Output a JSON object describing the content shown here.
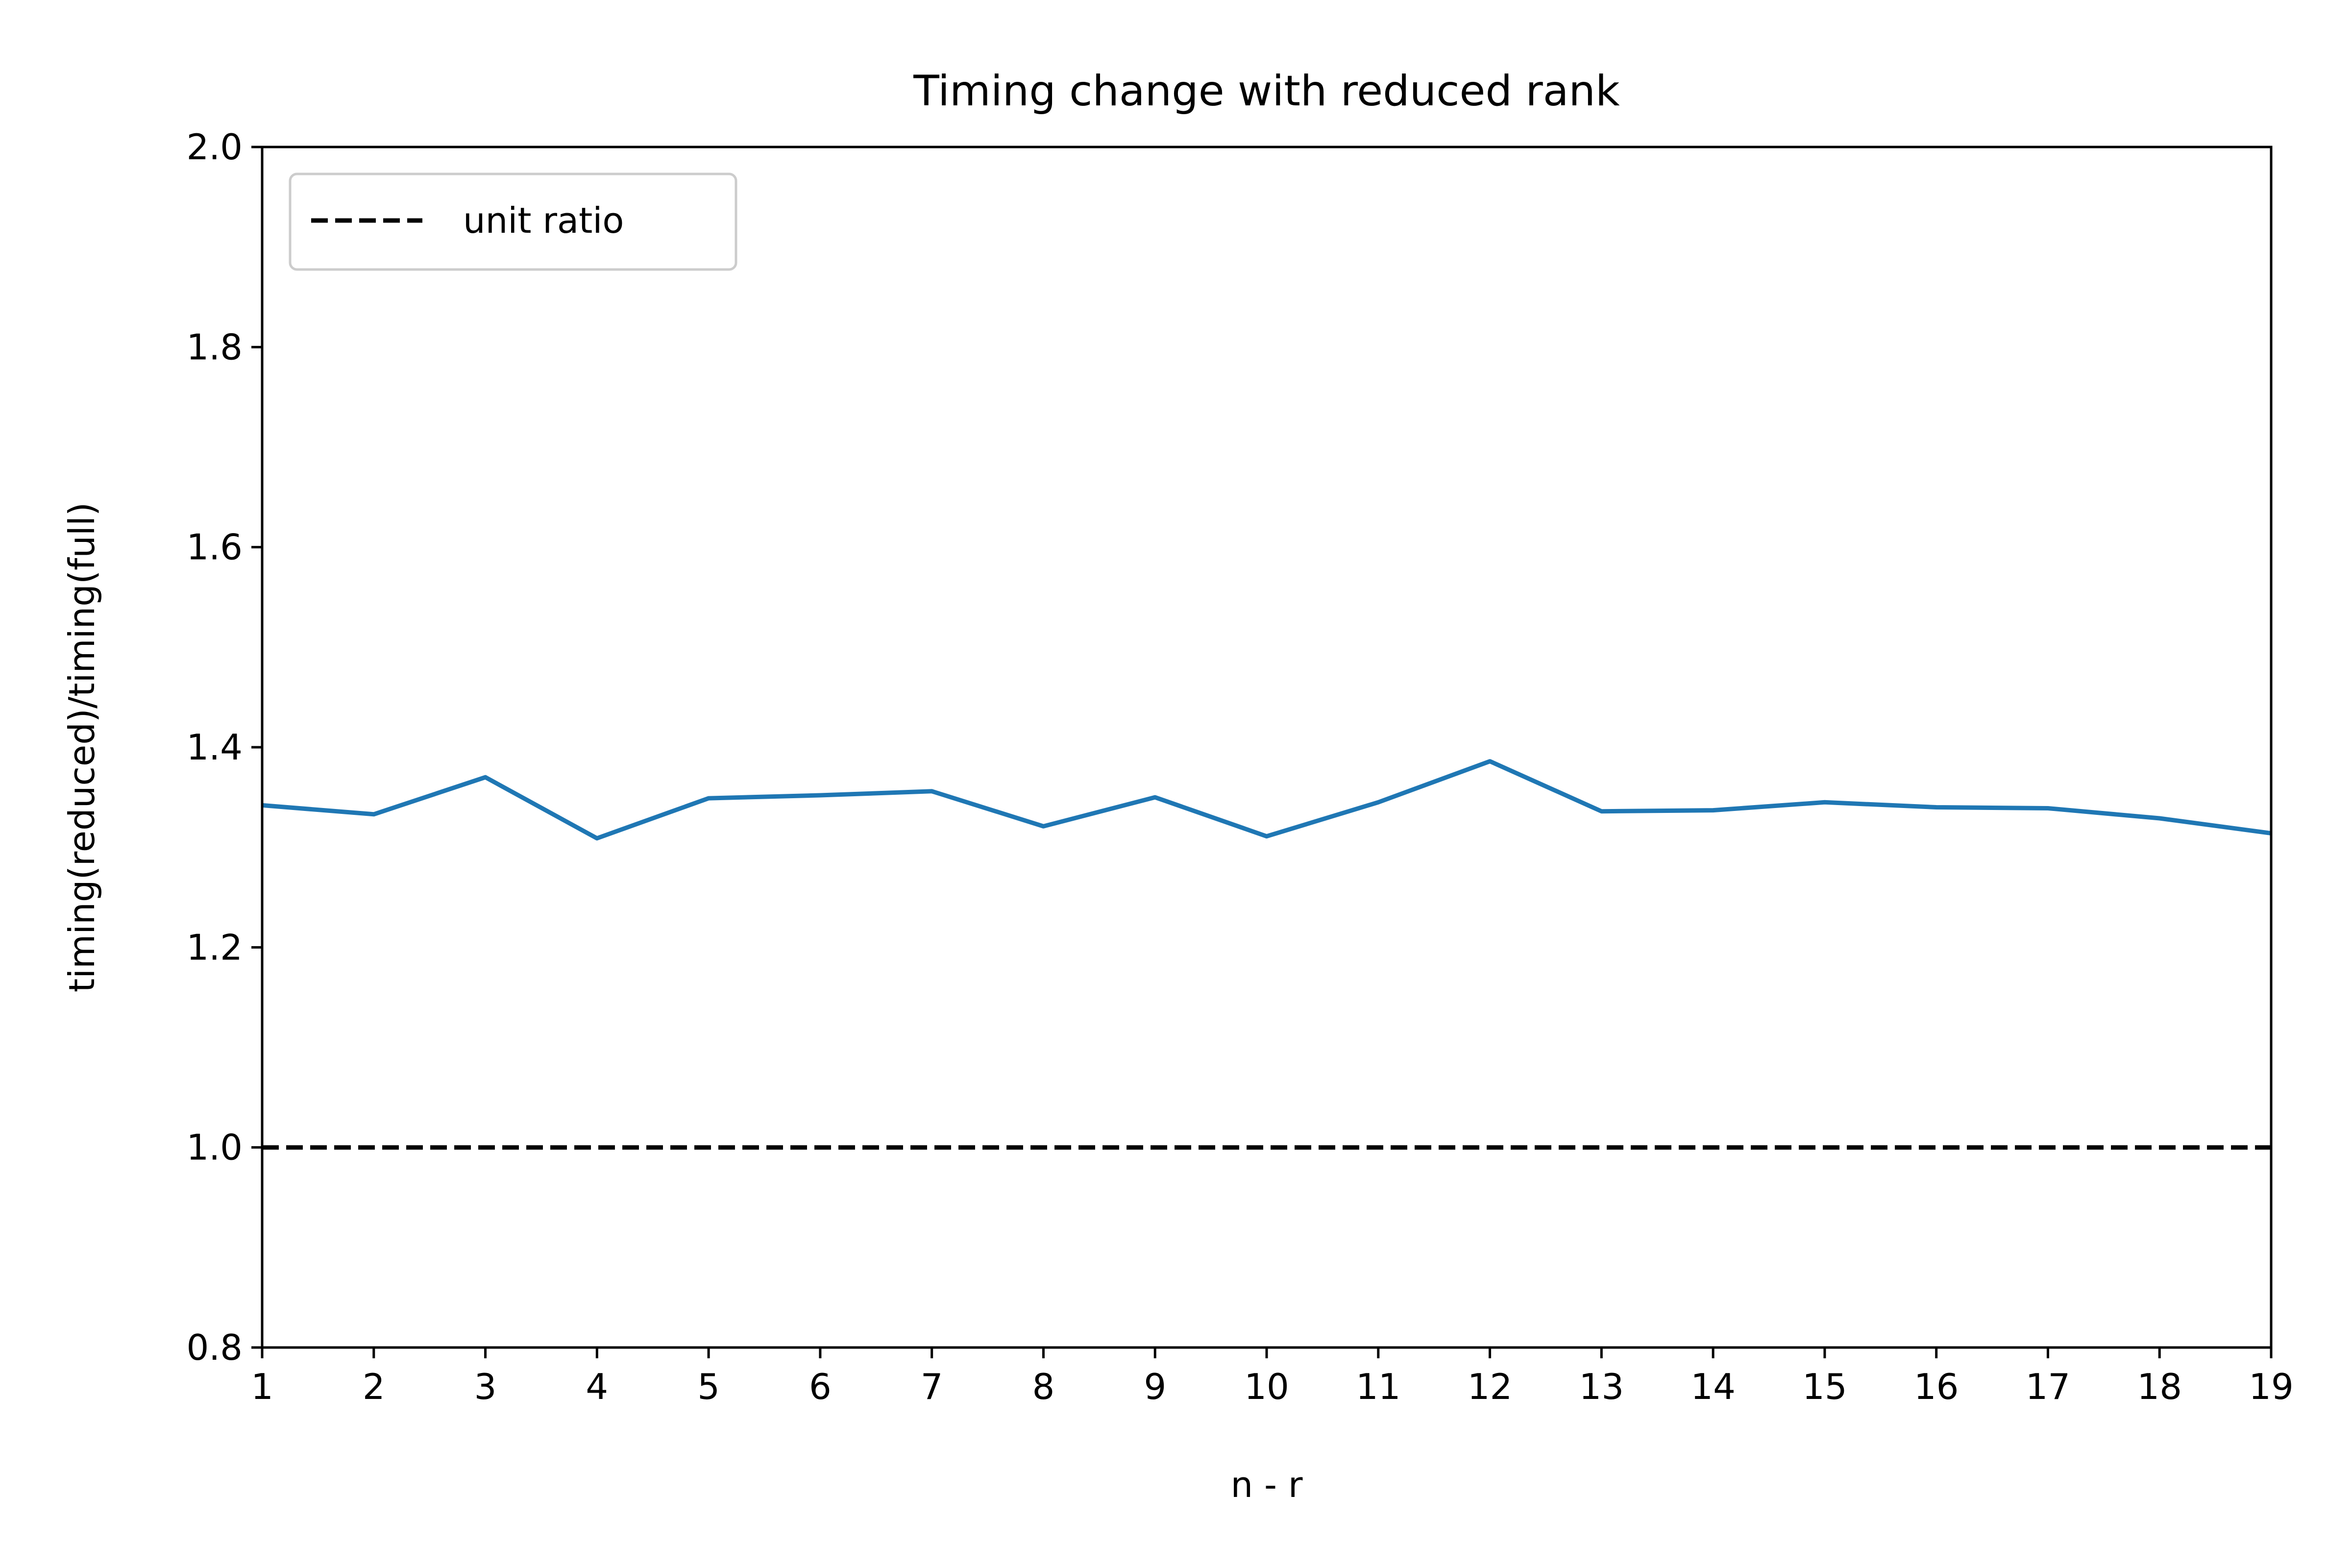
{
  "chart_data": {
    "type": "line",
    "title": "Timing change with reduced rank",
    "xlabel": "n - r",
    "ylabel": "timing(reduced)/timing(full)",
    "xlim": [
      1,
      19
    ],
    "ylim": [
      0.8,
      2.0
    ],
    "x_ticks": [
      "1",
      "2",
      "3",
      "4",
      "5",
      "6",
      "7",
      "8",
      "9",
      "10",
      "11",
      "12",
      "13",
      "14",
      "15",
      "16",
      "17",
      "18",
      "19"
    ],
    "y_ticks": [
      "0.8",
      "1.0",
      "1.2",
      "1.4",
      "1.6",
      "1.8",
      "2.0"
    ],
    "grid": false,
    "legend_position": "top-left",
    "series": [
      {
        "color": "#1f77b4",
        "style": "solid",
        "x": [
          1,
          2,
          3,
          4,
          5,
          6,
          7,
          8,
          9,
          10,
          11,
          12,
          13,
          14,
          15,
          16,
          17,
          18,
          19
        ],
        "y": [
          1.342,
          1.333,
          1.37,
          1.309,
          1.349,
          1.352,
          1.356,
          1.321,
          1.35,
          1.311,
          1.345,
          1.386,
          1.336,
          1.337,
          1.345,
          1.34,
          1.339,
          1.329,
          1.314
        ]
      },
      {
        "name": "unit ratio",
        "color": "#000000",
        "style": "dashed",
        "x": [
          1,
          19
        ],
        "y": [
          1.0,
          1.0
        ]
      }
    ]
  }
}
